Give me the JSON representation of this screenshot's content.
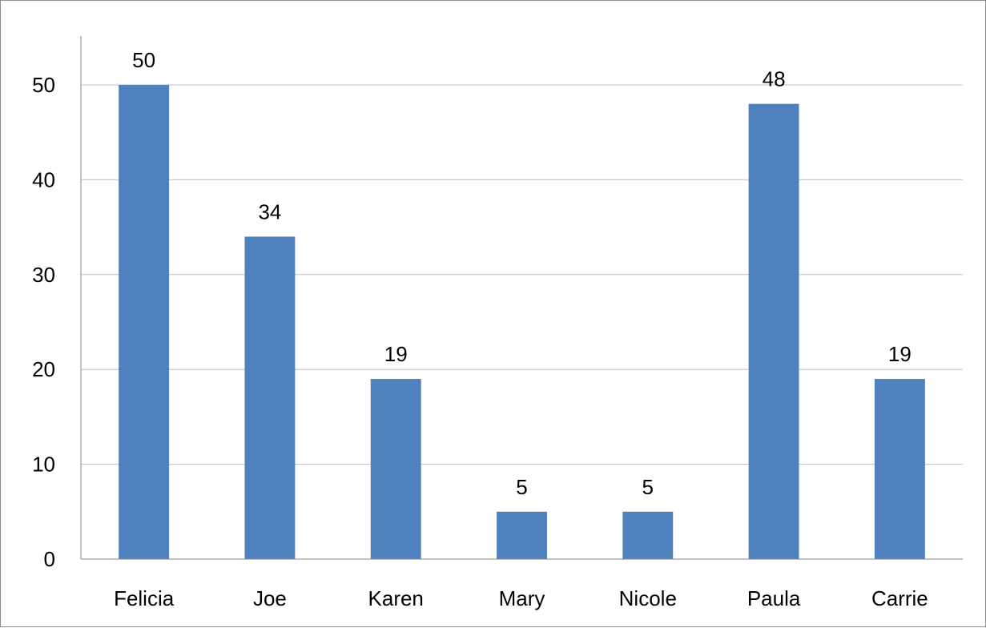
{
  "chart_data": {
    "type": "bar",
    "title": "",
    "xlabel": "",
    "ylabel": "",
    "categories": [
      "Felicia",
      "Joe",
      "Karen",
      "Mary",
      "Nicole",
      "Paula",
      "Carrie"
    ],
    "values": [
      50,
      34,
      19,
      5,
      5,
      48,
      19
    ],
    "data_labels": [
      "50",
      "34",
      "19",
      "5",
      "5",
      "48",
      "19"
    ],
    "ylim": [
      0,
      50
    ],
    "yticks": [
      0,
      10,
      20,
      30,
      40,
      50
    ],
    "ytick_labels": [
      "0",
      "10",
      "20",
      "30",
      "40",
      "50"
    ],
    "grid": true,
    "legend": "none",
    "colors": {
      "bar": "#4f81bd",
      "grid": "#bfbfbf",
      "axis": "#868686",
      "frame": "#8c8c8c"
    }
  }
}
